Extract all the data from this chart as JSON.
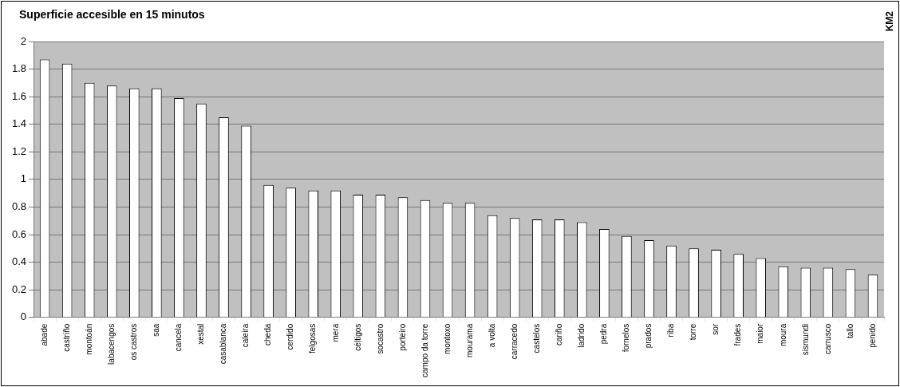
{
  "chart_data": {
    "type": "bar",
    "title": "Superficie accesible en 15 minutos",
    "ylabel": "KM2",
    "categories": [
      "abade",
      "castriño",
      "montoán",
      "labacengos",
      "os castros",
      "saa",
      "cancela",
      "xestal",
      "casablanca",
      "caleira",
      "cheda",
      "cerdido",
      "felgosas",
      "mera",
      "céltigos",
      "socastro",
      "porteiro",
      "campo da torre",
      "montoxo",
      "mourama",
      "a volta",
      "carracedo",
      "castelos",
      "cariño",
      "ladrido",
      "pedra",
      "fornelos",
      "prados",
      "riba",
      "torre",
      "sor",
      "frades",
      "maior",
      "moura",
      "sismundi",
      "carrusco",
      "tallo",
      "penido"
    ],
    "values": [
      1.87,
      1.84,
      1.7,
      1.68,
      1.66,
      1.66,
      1.59,
      1.55,
      1.45,
      1.39,
      0.96,
      0.94,
      0.92,
      0.92,
      0.89,
      0.89,
      0.87,
      0.85,
      0.83,
      0.83,
      0.74,
      0.72,
      0.71,
      0.71,
      0.69,
      0.64,
      0.59,
      0.56,
      0.52,
      0.5,
      0.49,
      0.46,
      0.43,
      0.37,
      0.36,
      0.36,
      0.35,
      0.31
    ],
    "color": "#ffffff",
    "ylim": [
      0,
      2
    ],
    "yticks": [
      0,
      0.2,
      0.4,
      0.6,
      0.8,
      1,
      1.2,
      1.4,
      1.6,
      1.8,
      2
    ],
    "grid": true,
    "legend": false
  }
}
